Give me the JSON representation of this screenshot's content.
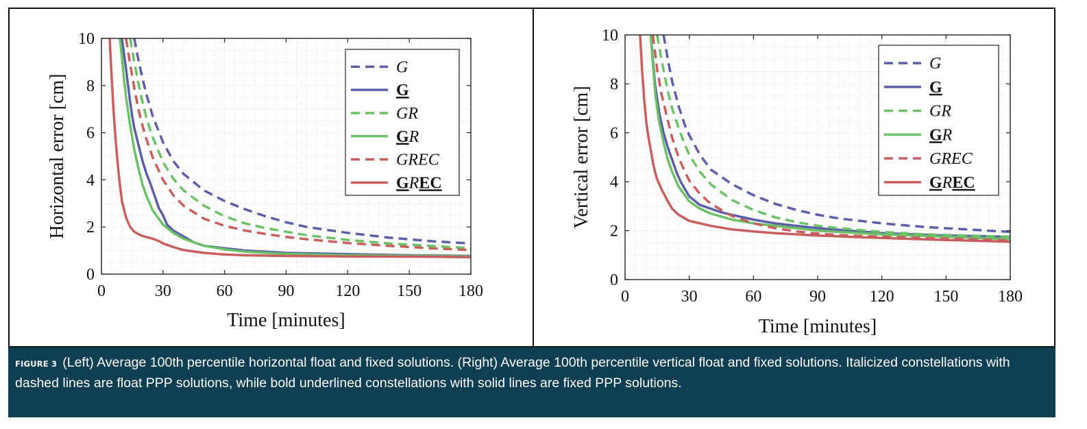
{
  "figure": {
    "caption_label": "FIGURE 3",
    "caption_text": "(Left) Average 100th percentile horizontal float and fixed solutions. (Right) Average 100th percentile vertical float and fixed solutions. Italicized constellations with dashed lines are float PPP solutions, while bold underlined constellations with solid lines are fixed PPP solutions."
  },
  "colors": {
    "blue": "#5a5fa8",
    "green": "#6cc166",
    "red": "#c95e5e",
    "caption_bg": "#0d3e52"
  },
  "chart_data": [
    {
      "type": "line",
      "panel": "left",
      "title": "",
      "xlabel": "Time [minutes]",
      "ylabel": "Horizontal error [cm]",
      "xlim": [
        0,
        180
      ],
      "ylim": [
        0,
        10
      ],
      "xticks": [
        "0",
        "30",
        "60",
        "90",
        "120",
        "150",
        "180"
      ],
      "yticks": [
        "0",
        "2",
        "4",
        "6",
        "8",
        "10"
      ],
      "grid": "dotted",
      "legend_position": "top-right",
      "series": [
        {
          "name": "G",
          "style": "dashed",
          "color": "blue",
          "x": [
            16,
            18,
            20,
            22,
            25,
            30,
            35,
            40,
            50,
            60,
            70,
            80,
            90,
            100,
            120,
            140,
            160,
            180
          ],
          "y": [
            10,
            9.1,
            8.3,
            7.6,
            6.7,
            5.6,
            4.8,
            4.25,
            3.55,
            3.1,
            2.75,
            2.45,
            2.2,
            2.0,
            1.75,
            1.55,
            1.4,
            1.3
          ]
        },
        {
          "name": "G",
          "style": "solid",
          "color": "blue",
          "x": [
            10,
            12,
            14,
            15,
            16,
            18,
            20,
            22,
            24,
            26,
            28,
            30,
            32,
            35,
            40,
            45,
            50,
            60,
            70,
            80,
            90,
            120,
            150,
            180
          ],
          "y": [
            10,
            8.7,
            7.3,
            6.7,
            6.2,
            5.5,
            4.8,
            4.25,
            3.8,
            3.3,
            2.8,
            2.5,
            2.1,
            1.85,
            1.6,
            1.35,
            1.2,
            1.1,
            1.0,
            0.95,
            0.9,
            0.85,
            0.8,
            0.77
          ]
        },
        {
          "name": "GR",
          "style": "dashed",
          "color": "green",
          "x": [
            14,
            16,
            18,
            20,
            22,
            25,
            30,
            35,
            40,
            50,
            60,
            70,
            80,
            90,
            100,
            120,
            140,
            160,
            180
          ],
          "y": [
            10,
            9.0,
            8.1,
            7.3,
            6.6,
            5.8,
            4.75,
            4.05,
            3.55,
            2.9,
            2.45,
            2.15,
            1.95,
            1.8,
            1.65,
            1.45,
            1.3,
            1.2,
            1.1
          ]
        },
        {
          "name": "GR",
          "style": "solid",
          "color": "green",
          "x": [
            9,
            10,
            11,
            12,
            13,
            14,
            15,
            16,
            18,
            20,
            22,
            25,
            30,
            35,
            40,
            50,
            60,
            70,
            80,
            90,
            120,
            150,
            180
          ],
          "y": [
            10,
            9.2,
            8.3,
            7.5,
            6.9,
            6.3,
            5.8,
            5.3,
            4.5,
            3.8,
            3.3,
            2.7,
            2.1,
            1.75,
            1.5,
            1.2,
            1.05,
            0.95,
            0.9,
            0.86,
            0.8,
            0.78,
            0.75
          ]
        },
        {
          "name": "GREC",
          "style": "dashed",
          "color": "red",
          "x": [
            12,
            14,
            16,
            18,
            20,
            22,
            25,
            30,
            35,
            40,
            50,
            60,
            70,
            80,
            90,
            100,
            120,
            140,
            160,
            180
          ],
          "y": [
            10,
            8.9,
            7.9,
            7.0,
            6.3,
            5.7,
            4.95,
            4.0,
            3.35,
            2.9,
            2.35,
            2.05,
            1.85,
            1.7,
            1.58,
            1.48,
            1.32,
            1.2,
            1.1,
            1.02
          ]
        },
        {
          "name": "GREC",
          "style": "solid",
          "color": "red",
          "x": [
            4,
            5,
            6,
            7,
            8,
            9,
            10,
            11,
            12,
            14,
            16,
            18,
            20,
            25,
            28,
            30,
            35,
            40,
            50,
            60,
            70,
            90,
            120,
            150,
            180
          ],
          "y": [
            10,
            8.3,
            6.8,
            5.6,
            4.6,
            3.8,
            3.1,
            2.75,
            2.4,
            2.0,
            1.8,
            1.7,
            1.62,
            1.5,
            1.4,
            1.3,
            1.15,
            1.02,
            0.9,
            0.83,
            0.8,
            0.77,
            0.75,
            0.74,
            0.72
          ]
        }
      ]
    },
    {
      "type": "line",
      "panel": "right",
      "title": "",
      "xlabel": "Time [minutes]",
      "ylabel": "Vertical error [cm]",
      "xlim": [
        0,
        180
      ],
      "ylim": [
        0,
        10
      ],
      "xticks": [
        "0",
        "30",
        "60",
        "90",
        "120",
        "150",
        "180"
      ],
      "yticks": [
        "0",
        "2",
        "4",
        "6",
        "8",
        "10"
      ],
      "grid": "dotted",
      "legend_position": "top-right",
      "series": [
        {
          "name": "G",
          "style": "dashed",
          "color": "blue",
          "x": [
            18,
            20,
            22,
            25,
            28,
            30,
            35,
            40,
            50,
            60,
            70,
            80,
            90,
            100,
            120,
            140,
            160,
            180
          ],
          "y": [
            10,
            9.0,
            8.1,
            7.1,
            6.3,
            5.9,
            5.1,
            4.5,
            3.9,
            3.45,
            3.1,
            2.85,
            2.65,
            2.5,
            2.3,
            2.15,
            2.05,
            1.95
          ]
        },
        {
          "name": "G",
          "style": "solid",
          "color": "blue",
          "x": [
            12,
            14,
            15,
            16,
            18,
            20,
            22,
            24,
            26,
            28,
            30,
            35,
            40,
            45,
            50,
            60,
            70,
            80,
            90,
            120,
            150,
            180
          ],
          "y": [
            10,
            8.0,
            7.4,
            6.8,
            6.0,
            5.4,
            4.9,
            4.4,
            4.0,
            3.7,
            3.4,
            3.05,
            2.9,
            2.75,
            2.65,
            2.45,
            2.3,
            2.2,
            2.1,
            1.9,
            1.8,
            1.75
          ]
        },
        {
          "name": "GR",
          "style": "dashed",
          "color": "green",
          "x": [
            15,
            17,
            20,
            22,
            25,
            28,
            30,
            35,
            40,
            50,
            60,
            70,
            80,
            90,
            100,
            120,
            140,
            160,
            180
          ],
          "y": [
            10,
            9.0,
            7.7,
            7.0,
            6.2,
            5.5,
            5.1,
            4.4,
            3.9,
            3.25,
            2.85,
            2.55,
            2.35,
            2.2,
            2.1,
            1.95,
            1.85,
            1.8,
            1.75
          ]
        },
        {
          "name": "GR",
          "style": "solid",
          "color": "green",
          "x": [
            12,
            13,
            14,
            15,
            16,
            18,
            20,
            22,
            25,
            30,
            35,
            40,
            50,
            60,
            70,
            80,
            90,
            120,
            150,
            180
          ],
          "y": [
            10,
            8.8,
            7.7,
            7.0,
            6.4,
            5.6,
            4.9,
            4.4,
            3.8,
            3.2,
            2.9,
            2.7,
            2.45,
            2.3,
            2.2,
            2.1,
            2.0,
            1.85,
            1.75,
            1.65
          ]
        },
        {
          "name": "GREC",
          "style": "dashed",
          "color": "red",
          "x": [
            13,
            15,
            17,
            20,
            22,
            25,
            28,
            30,
            35,
            40,
            50,
            60,
            70,
            80,
            90,
            100,
            120,
            140,
            160,
            180
          ],
          "y": [
            10,
            8.6,
            7.6,
            6.5,
            5.8,
            5.0,
            4.4,
            4.05,
            3.5,
            3.1,
            2.6,
            2.3,
            2.1,
            1.97,
            1.88,
            1.82,
            1.75,
            1.7,
            1.65,
            1.6
          ]
        },
        {
          "name": "GREC",
          "style": "solid",
          "color": "red",
          "x": [
            7,
            8,
            9,
            10,
            11,
            12,
            13,
            14,
            15,
            17,
            20,
            22,
            25,
            28,
            30,
            35,
            40,
            50,
            60,
            70,
            90,
            120,
            150,
            180
          ],
          "y": [
            10,
            8.5,
            7.3,
            6.4,
            5.8,
            5.3,
            4.8,
            4.4,
            4.1,
            3.7,
            3.2,
            2.9,
            2.65,
            2.5,
            2.4,
            2.3,
            2.2,
            2.05,
            1.97,
            1.9,
            1.8,
            1.7,
            1.62,
            1.55
          ]
        }
      ]
    }
  ]
}
